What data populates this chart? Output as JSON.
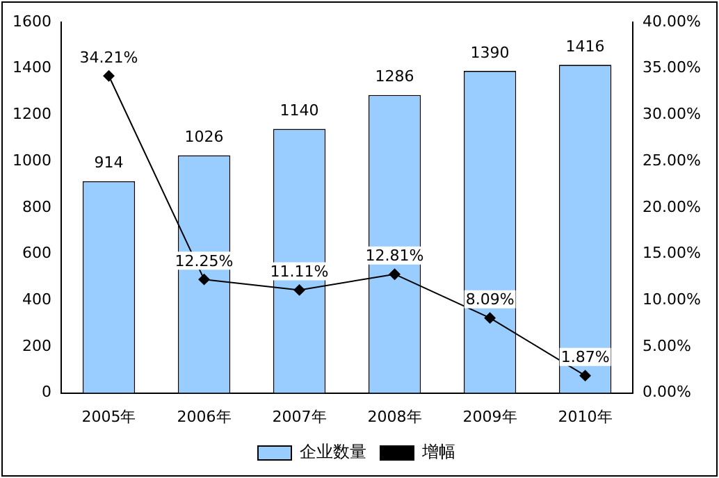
{
  "chart_data": {
    "type": "bar",
    "categories": [
      "2005年",
      "2006年",
      "2007年",
      "2008年",
      "2009年",
      "2010年"
    ],
    "series": [
      {
        "name": "企业数量",
        "color": "#99ccff",
        "values": [
          914,
          1026,
          1140,
          1286,
          1390,
          1416
        ],
        "value_labels": [
          "914",
          "1026",
          "1140",
          "1286",
          "1390",
          "1416"
        ]
      },
      {
        "name": "增幅",
        "type": "line",
        "axis": "y2",
        "color": "#000000",
        "values": [
          34.21,
          12.25,
          11.11,
          12.81,
          8.09,
          1.87
        ],
        "value_labels": [
          "34.21%",
          "12.25%",
          "11.11%",
          "12.81%",
          "8.09%",
          "1.87%"
        ]
      }
    ],
    "ylim": [
      0,
      1600
    ],
    "yticks": [
      0,
      200,
      400,
      600,
      800,
      1000,
      1200,
      1400,
      1600
    ],
    "y2lim": [
      0,
      40
    ],
    "y2ticks": [
      {
        "value": 0,
        "label": "0.00%"
      },
      {
        "value": 5,
        "label": "5.00%"
      },
      {
        "value": 10,
        "label": "10.00%"
      },
      {
        "value": 15,
        "label": "15.00%"
      },
      {
        "value": 20,
        "label": "20.00%"
      },
      {
        "value": 25,
        "label": "25.00%"
      },
      {
        "value": 30,
        "label": "30.00%"
      },
      {
        "value": 35,
        "label": "35.00%"
      },
      {
        "value": 40,
        "label": "40.00%"
      }
    ],
    "legend": "bottom",
    "marker": "diamond",
    "line_style": "solid",
    "grid": false
  }
}
